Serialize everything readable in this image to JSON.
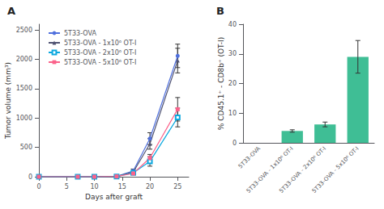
{
  "chart_data": [
    {
      "type": "line",
      "title": "A",
      "x": [
        0,
        7,
        10,
        14,
        17,
        20,
        25
      ],
      "series": [
        {
          "name": "5T33-OVA",
          "marker": "circle",
          "values": [
            0,
            0,
            0,
            5,
            100,
            650,
            2060
          ],
          "yerr": [
            0,
            0,
            0,
            5,
            30,
            100,
            200
          ]
        },
        {
          "name": "5T33-OVA - 1x10⁶ OT-I",
          "marker": "triangle",
          "values": [
            0,
            0,
            0,
            5,
            80,
            560,
            1980
          ],
          "yerr": [
            0,
            0,
            0,
            5,
            25,
            90,
            210
          ]
        },
        {
          "name": "5T33-OVA - 2x10⁶ OT-I",
          "marker": "open_square",
          "values": [
            0,
            0,
            0,
            5,
            65,
            260,
            1010
          ],
          "yerr": [
            0,
            0,
            0,
            5,
            20,
            80,
            160
          ]
        },
        {
          "name": "5T33-OVA - 5x10⁶ OT-I",
          "marker": "square",
          "values": [
            0,
            0,
            0,
            5,
            55,
            320,
            1150
          ],
          "yerr": [
            0,
            0,
            0,
            5,
            15,
            60,
            200
          ]
        }
      ],
      "xlabel": "Days after graft",
      "ylabel": "Tumor volume (mm³)",
      "xlim": [
        0,
        27
      ],
      "xticks": [
        0,
        5,
        10,
        15,
        20,
        25
      ],
      "ylim": [
        0,
        2600
      ],
      "yticks": [
        0,
        500,
        1000,
        1500,
        2000,
        2500
      ],
      "legend": "upper left",
      "grid": false
    },
    {
      "type": "bar",
      "title": "B",
      "categories": [
        "5T33-OVA",
        "5T33-OVA - 1x10⁶ OT-I",
        "5T33-OVA - 2x10⁶ OT-I",
        "5T33-OVA - 5x10⁶ OT-I"
      ],
      "values": [
        0,
        4.0,
        6.2,
        29.0
      ],
      "yerr": [
        0,
        0.4,
        0.8,
        5.5
      ],
      "ylabel": "% CD45.1⁺ - CD8b⁺ (OT-I)",
      "ylim": [
        0,
        40
      ],
      "yticks": [
        0,
        10,
        20,
        30,
        40
      ],
      "grid": false
    }
  ]
}
